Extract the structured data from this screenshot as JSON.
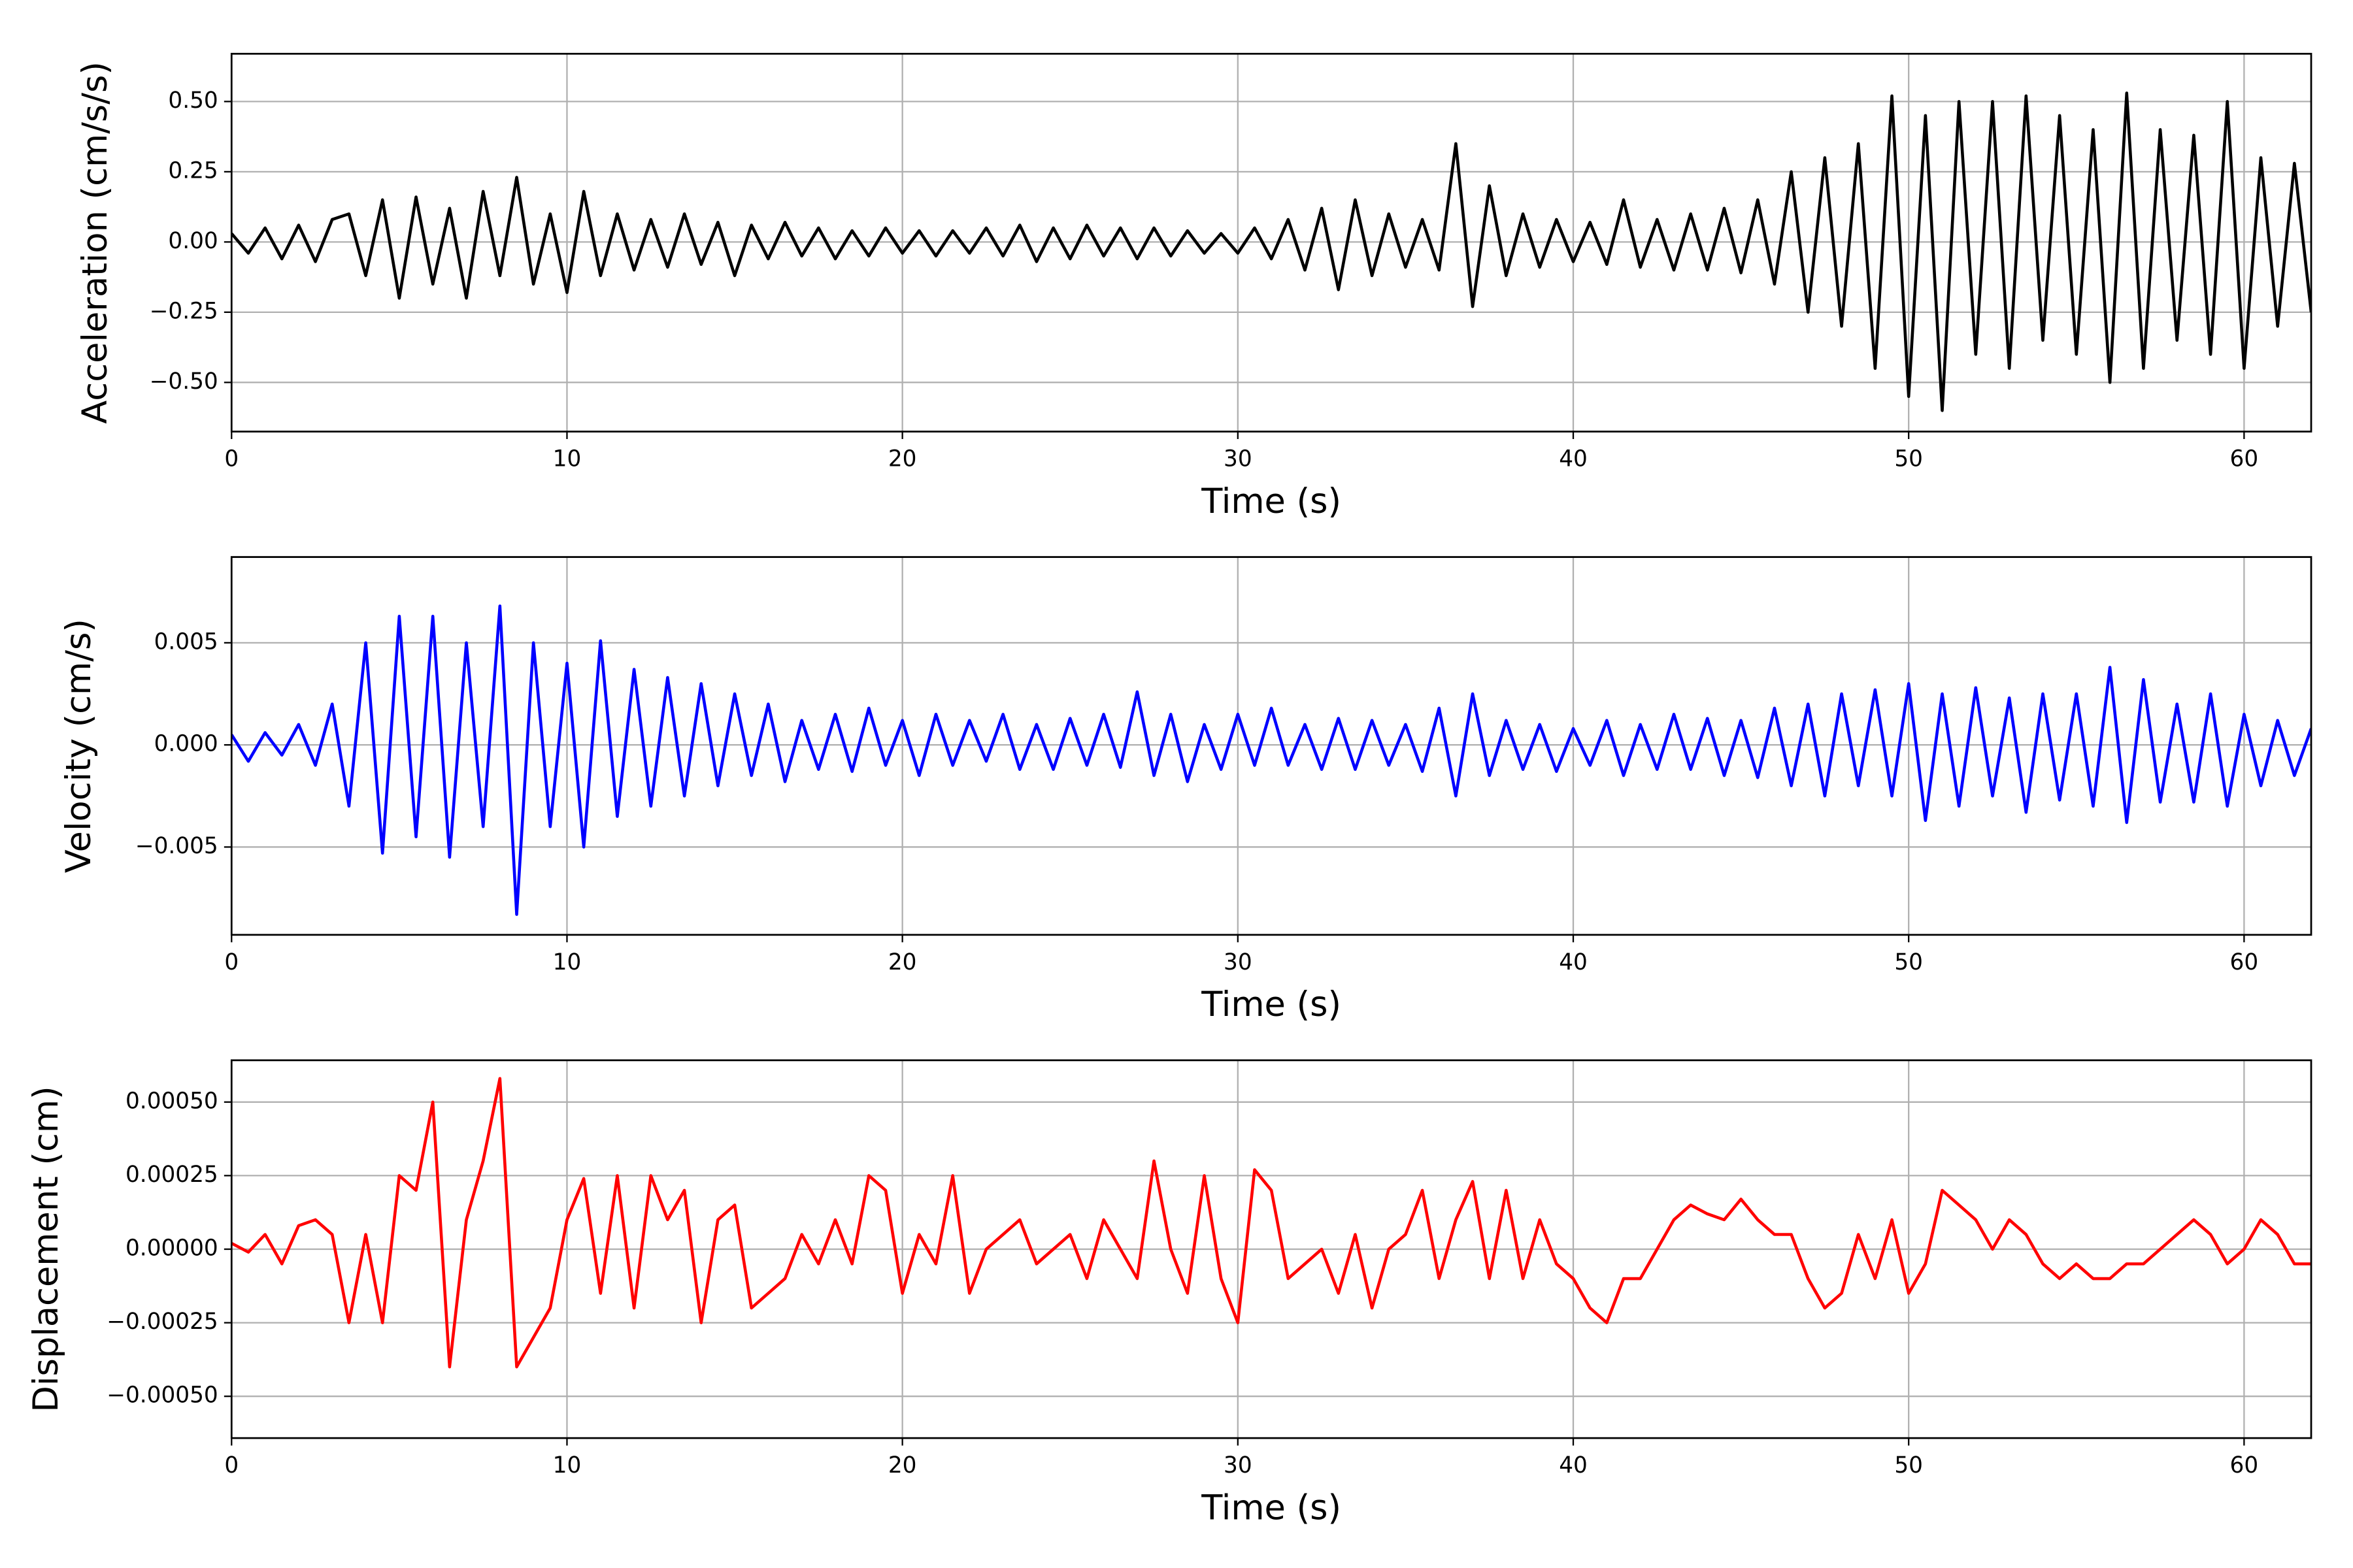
{
  "chart_data": [
    {
      "type": "line",
      "xlabel": "Time (s)",
      "ylabel": "Acceleration (cm/s/s)",
      "x": [
        0,
        0.5,
        1,
        1.5,
        2,
        2.5,
        3,
        3.5,
        4,
        4.5,
        5,
        5.5,
        6,
        6.5,
        7,
        7.5,
        8,
        8.5,
        9,
        9.5,
        10,
        10.5,
        11,
        11.5,
        12,
        12.5,
        13,
        13.5,
        14,
        14.5,
        15,
        15.5,
        16,
        16.5,
        17,
        17.5,
        18,
        18.5,
        19,
        19.5,
        20,
        20.5,
        21,
        21.5,
        22,
        22.5,
        23,
        23.5,
        24,
        24.5,
        25,
        25.5,
        26,
        26.5,
        27,
        27.5,
        28,
        28.5,
        29,
        29.5,
        30,
        30.5,
        31,
        31.5,
        32,
        32.5,
        33,
        33.5,
        34,
        34.5,
        35,
        35.5,
        36,
        36.5,
        37,
        37.5,
        38,
        38.5,
        39,
        39.5,
        40,
        40.5,
        41,
        41.5,
        42,
        42.5,
        43,
        43.5,
        44,
        44.5,
        45,
        45.5,
        46,
        46.5,
        47,
        47.5,
        48,
        48.5,
        49,
        49.5,
        50,
        50.5,
        51,
        51.5,
        52,
        52.5,
        53,
        53.5,
        54,
        54.5,
        55,
        55.5,
        56,
        56.5,
        57,
        57.5,
        58,
        58.5,
        59,
        59.5,
        60,
        60.5,
        61,
        61.5,
        62
      ],
      "series": [
        {
          "color": "#000000",
          "values": [
            0.03,
            -0.04,
            0.05,
            -0.06,
            0.06,
            -0.07,
            0.08,
            0.1,
            -0.12,
            0.15,
            -0.2,
            0.16,
            -0.15,
            0.12,
            -0.2,
            0.18,
            -0.12,
            0.23,
            -0.15,
            0.1,
            -0.18,
            0.18,
            -0.12,
            0.1,
            -0.1,
            0.08,
            -0.09,
            0.1,
            -0.08,
            0.07,
            -0.12,
            0.06,
            -0.06,
            0.07,
            -0.05,
            0.05,
            -0.06,
            0.04,
            -0.05,
            0.05,
            -0.04,
            0.04,
            -0.05,
            0.04,
            -0.04,
            0.05,
            -0.05,
            0.06,
            -0.07,
            0.05,
            -0.06,
            0.06,
            -0.05,
            0.05,
            -0.06,
            0.05,
            -0.05,
            0.04,
            -0.04,
            0.03,
            -0.04,
            0.05,
            -0.06,
            0.08,
            -0.1,
            0.12,
            -0.17,
            0.15,
            -0.12,
            0.1,
            -0.09,
            0.08,
            -0.1,
            0.35,
            -0.23,
            0.2,
            -0.12,
            0.1,
            -0.09,
            0.08,
            -0.07,
            0.07,
            -0.08,
            0.15,
            -0.09,
            0.08,
            -0.1,
            0.1,
            -0.1,
            0.12,
            -0.11,
            0.15,
            -0.15,
            0.25,
            -0.25,
            0.3,
            -0.3,
            0.35,
            -0.45,
            0.52,
            -0.55,
            0.45,
            -0.6,
            0.5,
            -0.4,
            0.5,
            -0.45,
            0.52,
            -0.35,
            0.45,
            -0.4,
            0.4,
            -0.5,
            0.53,
            -0.45,
            0.4,
            -0.35,
            0.38,
            -0.4,
            0.5,
            -0.45,
            0.3,
            -0.3,
            0.28,
            -0.25
          ]
        }
      ],
      "xlim": [
        0,
        62
      ],
      "ylim": [
        -0.675,
        0.67
      ],
      "xticks": [
        0,
        10,
        20,
        30,
        40,
        50,
        60
      ],
      "yticks": [
        {
          "value": -0.5,
          "label": "−0.50"
        },
        {
          "value": -0.25,
          "label": "−0.25"
        },
        {
          "value": 0,
          "label": "0.00"
        },
        {
          "value": 0.25,
          "label": "0.25"
        },
        {
          "value": 0.5,
          "label": "0.50"
        }
      ],
      "grid": true
    },
    {
      "type": "line",
      "xlabel": "Time (s)",
      "ylabel": "Velocity (cm/s)",
      "x": [
        0,
        0.5,
        1,
        1.5,
        2,
        2.5,
        3,
        3.5,
        4,
        4.5,
        5,
        5.5,
        6,
        6.5,
        7,
        7.5,
        8,
        8.5,
        9,
        9.5,
        10,
        10.5,
        11,
        11.5,
        12,
        12.5,
        13,
        13.5,
        14,
        14.5,
        15,
        15.5,
        16,
        16.5,
        17,
        17.5,
        18,
        18.5,
        19,
        19.5,
        20,
        20.5,
        21,
        21.5,
        22,
        22.5,
        23,
        23.5,
        24,
        24.5,
        25,
        25.5,
        26,
        26.5,
        27,
        27.5,
        28,
        28.5,
        29,
        29.5,
        30,
        30.5,
        31,
        31.5,
        32,
        32.5,
        33,
        33.5,
        34,
        34.5,
        35,
        35.5,
        36,
        36.5,
        37,
        37.5,
        38,
        38.5,
        39,
        39.5,
        40,
        40.5,
        41,
        41.5,
        42,
        42.5,
        43,
        43.5,
        44,
        44.5,
        45,
        45.5,
        46,
        46.5,
        47,
        47.5,
        48,
        48.5,
        49,
        49.5,
        50,
        50.5,
        51,
        51.5,
        52,
        52.5,
        53,
        53.5,
        54,
        54.5,
        55,
        55.5,
        56,
        56.5,
        57,
        57.5,
        58,
        58.5,
        59,
        59.5,
        60,
        60.5,
        61,
        61.5,
        62
      ],
      "series": [
        {
          "color": "#0000ff",
          "values": [
            0.0005,
            -0.0008,
            0.0006,
            -0.0005,
            0.001,
            -0.001,
            0.002,
            -0.003,
            0.005,
            -0.0053,
            0.0063,
            -0.0045,
            0.0063,
            -0.0055,
            0.005,
            -0.004,
            0.0068,
            -0.0083,
            0.005,
            -0.004,
            0.004,
            -0.005,
            0.0051,
            -0.0035,
            0.0037,
            -0.003,
            0.0033,
            -0.0025,
            0.003,
            -0.002,
            0.0025,
            -0.0015,
            0.002,
            -0.0018,
            0.0012,
            -0.0012,
            0.0015,
            -0.0013,
            0.0018,
            -0.001,
            0.0012,
            -0.0015,
            0.0015,
            -0.001,
            0.0012,
            -0.0008,
            0.0015,
            -0.0012,
            0.001,
            -0.0012,
            0.0013,
            -0.001,
            0.0015,
            -0.0011,
            0.0026,
            -0.0015,
            0.0015,
            -0.0018,
            0.001,
            -0.0012,
            0.0015,
            -0.001,
            0.0018,
            -0.001,
            0.001,
            -0.0012,
            0.0013,
            -0.0012,
            0.0012,
            -0.001,
            0.001,
            -0.0013,
            0.0018,
            -0.0025,
            0.0025,
            -0.0015,
            0.0012,
            -0.0012,
            0.001,
            -0.0013,
            0.0008,
            -0.001,
            0.0012,
            -0.0015,
            0.001,
            -0.0012,
            0.0015,
            -0.0012,
            0.0013,
            -0.0015,
            0.0012,
            -0.0016,
            0.0018,
            -0.002,
            0.002,
            -0.0025,
            0.0025,
            -0.002,
            0.0027,
            -0.0025,
            0.003,
            -0.0037,
            0.0025,
            -0.003,
            0.0028,
            -0.0025,
            0.0023,
            -0.0033,
            0.0025,
            -0.0027,
            0.0025,
            -0.003,
            0.0038,
            -0.0038,
            0.0032,
            -0.0028,
            0.002,
            -0.0028,
            0.0025,
            -0.003,
            0.0015,
            -0.002,
            0.0012,
            -0.0015,
            0.0008
          ]
        }
      ],
      "xlim": [
        0,
        62
      ],
      "ylim": [
        -0.0093,
        0.0092
      ],
      "xticks": [
        0,
        10,
        20,
        30,
        40,
        50,
        60
      ],
      "yticks": [
        {
          "value": -0.005,
          "label": "−0.005"
        },
        {
          "value": 0,
          "label": "0.000"
        },
        {
          "value": 0.005,
          "label": "0.005"
        }
      ],
      "grid": true
    },
    {
      "type": "line",
      "xlabel": "Time (s)",
      "ylabel": "Displacement (cm)",
      "x": [
        0,
        0.5,
        1,
        1.5,
        2,
        2.5,
        3,
        3.5,
        4,
        4.5,
        5,
        5.5,
        6,
        6.5,
        7,
        7.5,
        8,
        8.5,
        9,
        9.5,
        10,
        10.5,
        11,
        11.5,
        12,
        12.5,
        13,
        13.5,
        14,
        14.5,
        15,
        15.5,
        16,
        16.5,
        17,
        17.5,
        18,
        18.5,
        19,
        19.5,
        20,
        20.5,
        21,
        21.5,
        22,
        22.5,
        23,
        23.5,
        24,
        24.5,
        25,
        25.5,
        26,
        26.5,
        27,
        27.5,
        28,
        28.5,
        29,
        29.5,
        30,
        30.5,
        31,
        31.5,
        32,
        32.5,
        33,
        33.5,
        34,
        34.5,
        35,
        35.5,
        36,
        36.5,
        37,
        37.5,
        38,
        38.5,
        39,
        39.5,
        40,
        40.5,
        41,
        41.5,
        42,
        42.5,
        43,
        43.5,
        44,
        44.5,
        45,
        45.5,
        46,
        46.5,
        47,
        47.5,
        48,
        48.5,
        49,
        49.5,
        50,
        50.5,
        51,
        51.5,
        52,
        52.5,
        53,
        53.5,
        54,
        54.5,
        55,
        55.5,
        56,
        56.5,
        57,
        57.5,
        58,
        58.5,
        59,
        59.5,
        60,
        60.5,
        61,
        61.5,
        62
      ],
      "series": [
        {
          "color": "#ff0000",
          "values": [
            2e-05,
            -1e-05,
            5e-05,
            -5e-05,
            8e-05,
            0.0001,
            5e-05,
            -0.00025,
            5e-05,
            -0.00025,
            0.00025,
            0.0002,
            0.0005,
            -0.0004,
            0.0001,
            0.0003,
            0.00058,
            -0.0004,
            -0.0003,
            -0.0002,
            0.0001,
            0.00024,
            -0.00015,
            0.00025,
            -0.0002,
            0.00025,
            0.0001,
            0.0002,
            -0.00025,
            0.0001,
            0.00015,
            -0.0002,
            -0.00015,
            -0.0001,
            5e-05,
            -5e-05,
            0.0001,
            -5e-05,
            0.00025,
            0.0002,
            -0.00015,
            5e-05,
            -5e-05,
            0.00025,
            -0.00015,
            0.0,
            5e-05,
            0.0001,
            -5e-05,
            0.0,
            5e-05,
            -0.0001,
            0.0001,
            0.0,
            -0.0001,
            0.0003,
            0.0,
            -0.00015,
            0.00025,
            -0.0001,
            -0.00025,
            0.00027,
            0.0002,
            -0.0001,
            -5e-05,
            0.0,
            -0.00015,
            5e-05,
            -0.0002,
            0.0,
            5e-05,
            0.0002,
            -0.0001,
            0.0001,
            0.00023,
            -0.0001,
            0.0002,
            -0.0001,
            0.0001,
            -5e-05,
            -0.0001,
            -0.0002,
            -0.00025,
            -0.0001,
            -0.0001,
            0.0,
            0.0001,
            0.00015,
            0.00012,
            0.0001,
            0.00017,
            0.0001,
            5e-05,
            5e-05,
            -0.0001,
            -0.0002,
            -0.00015,
            5e-05,
            -0.0001,
            0.0001,
            -0.00015,
            -5e-05,
            0.0002,
            0.00015,
            0.0001,
            0.0,
            0.0001,
            5e-05,
            -5e-05,
            -0.0001,
            -5e-05,
            -0.0001,
            -0.0001,
            -5e-05,
            -5e-05,
            0.0,
            5e-05,
            0.0001,
            5e-05,
            -5e-05,
            0.0,
            0.0001,
            5e-05,
            -5e-05,
            -5e-05
          ]
        }
      ],
      "xlim": [
        0,
        62
      ],
      "ylim": [
        -0.000642,
        0.000642
      ],
      "xticks": [
        0,
        10,
        20,
        30,
        40,
        50,
        60
      ],
      "yticks": [
        {
          "value": -0.0005,
          "label": "−0.00050"
        },
        {
          "value": -0.00025,
          "label": "−0.00025"
        },
        {
          "value": 0,
          "label": "0.00000"
        },
        {
          "value": 0.00025,
          "label": "0.00025"
        },
        {
          "value": 0.0005,
          "label": "0.00050"
        }
      ],
      "grid": true
    }
  ]
}
